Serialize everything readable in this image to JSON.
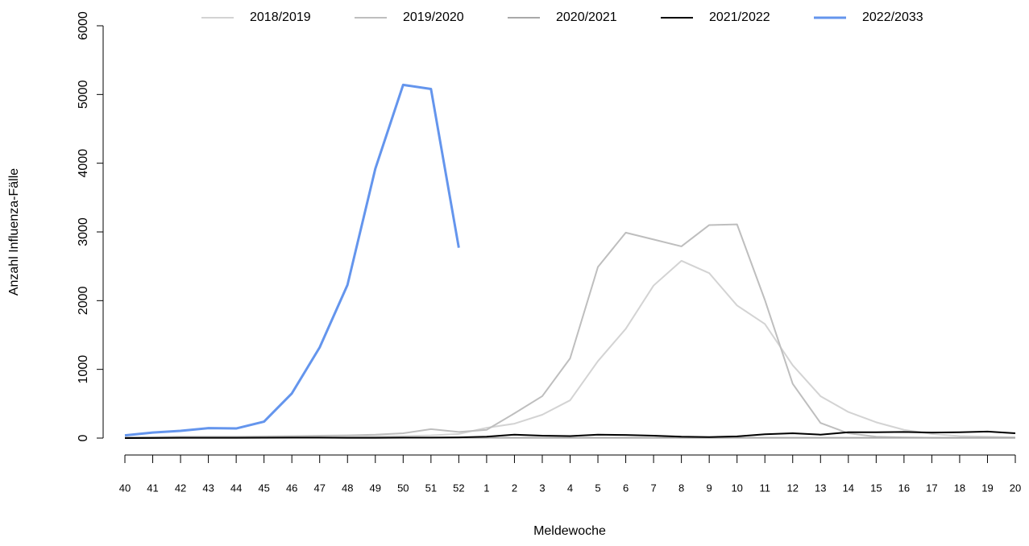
{
  "chart_data": {
    "type": "line",
    "x_label": "Meldewoche",
    "y_label": "Anzahl Influenza-Fälle",
    "categories": [
      "40",
      "41",
      "42",
      "43",
      "44",
      "45",
      "46",
      "47",
      "48",
      "49",
      "50",
      "51",
      "52",
      "1",
      "2",
      "3",
      "4",
      "5",
      "6",
      "7",
      "8",
      "9",
      "10",
      "11",
      "12",
      "13",
      "14",
      "15",
      "16",
      "17",
      "18",
      "19",
      "20"
    ],
    "ylim": [
      0,
      6000
    ],
    "yticks": [
      0,
      1000,
      2000,
      3000,
      4000,
      5000,
      6000
    ],
    "series": [
      {
        "name": "2018/2019",
        "color": "#d3d3d3",
        "values": [
          5,
          5,
          8,
          10,
          10,
          12,
          15,
          18,
          20,
          25,
          30,
          40,
          60,
          150,
          210,
          340,
          550,
          1120,
          1590,
          2220,
          2580,
          2400,
          1930,
          1660,
          1060,
          610,
          380,
          230,
          120,
          60,
          30,
          20,
          10
        ]
      },
      {
        "name": "2019/2020",
        "color": "#bebebe",
        "values": [
          10,
          15,
          20,
          20,
          20,
          25,
          30,
          35,
          40,
          50,
          70,
          130,
          90,
          120,
          360,
          610,
          1160,
          2490,
          2990,
          2890,
          2790,
          3100,
          3110,
          2010,
          790,
          220,
          70,
          20,
          10,
          5,
          5,
          5,
          5
        ]
      },
      {
        "name": "2020/2021",
        "color": "#a9a9a9",
        "values": [
          5,
          5,
          5,
          5,
          5,
          5,
          5,
          5,
          5,
          5,
          5,
          5,
          5,
          5,
          5,
          5,
          5,
          5,
          5,
          5,
          5,
          5,
          5,
          5,
          5,
          5,
          5,
          5,
          5,
          5,
          5,
          5,
          5
        ]
      },
      {
        "name": "2021/2022",
        "color": "#000000",
        "values": [
          0,
          2,
          4,
          5,
          5,
          6,
          8,
          8,
          5,
          5,
          8,
          8,
          10,
          20,
          50,
          35,
          30,
          50,
          45,
          35,
          20,
          15,
          25,
          55,
          70,
          50,
          85,
          85,
          90,
          80,
          85,
          95,
          70
        ]
      },
      {
        "name": "2022/2033",
        "color": "#6495ed",
        "values": [
          40,
          80,
          105,
          145,
          140,
          240,
          650,
          1320,
          2230,
          3920,
          5140,
          5080,
          2770,
          null,
          null,
          null,
          null,
          null,
          null,
          null,
          null,
          null,
          null,
          null,
          null,
          null,
          null,
          null,
          null,
          null,
          null,
          null,
          null
        ]
      }
    ]
  }
}
